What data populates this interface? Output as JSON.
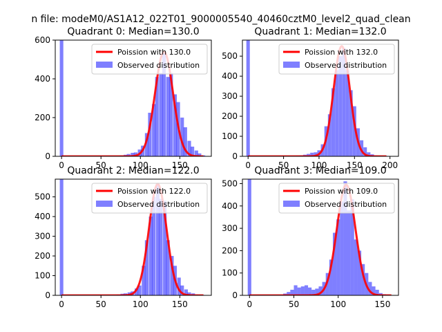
{
  "figure": {
    "suptitle": "n file: modeM0/AS1A12_022T01_9000005540_40460cztM0_level2_quad_clean"
  },
  "chart_data": [
    {
      "type": "bar",
      "title": "Quadrant 0: Median=130.0",
      "xlim": [
        -8,
        190
      ],
      "ylim": [
        0,
        600
      ],
      "xticks": [
        0,
        50,
        100,
        150
      ],
      "yticks": [
        0,
        200,
        400,
        600
      ],
      "bin_width": 4.5,
      "median": 130.0,
      "legend": {
        "position": "top-right",
        "entries": [
          "Poission with 130.0",
          "Observed distribution"
        ]
      },
      "hist": {
        "x": [
          0,
          72,
          76,
          81,
          85,
          90,
          94,
          99,
          103,
          108,
          112,
          117,
          121,
          126,
          130,
          135,
          139,
          144,
          148,
          153,
          157,
          162,
          166,
          171,
          175,
          180
        ],
        "y": [
          600,
          2,
          4,
          8,
          12,
          18,
          20,
          35,
          55,
          120,
          225,
          270,
          410,
          430,
          530,
          410,
          430,
          320,
          280,
          200,
          150,
          80,
          50,
          30,
          15,
          5
        ]
      },
      "poisson_mu": 130.0,
      "poisson_peak": 540,
      "poisson_xrange": [
        0,
        180
      ]
    },
    {
      "type": "bar",
      "title": "Quadrant 1: Median=132.0",
      "xlim": [
        -8,
        212
      ],
      "ylim": [
        0,
        580
      ],
      "xticks": [
        0,
        50,
        100,
        150,
        200
      ],
      "yticks": [
        0,
        100,
        200,
        300,
        400,
        500
      ],
      "bin_width": 4.9,
      "median": 132.0,
      "legend": {
        "position": "top-right",
        "entries": [
          "Poission with 132.0",
          "Observed distribution"
        ]
      },
      "hist": {
        "x": [
          0,
          65,
          70,
          75,
          80,
          85,
          90,
          95,
          100,
          105,
          110,
          115,
          120,
          125,
          130,
          135,
          140,
          145,
          150,
          155,
          160,
          165,
          170,
          175,
          180,
          185,
          190,
          195
        ],
        "y": [
          580,
          2,
          3,
          5,
          8,
          12,
          18,
          20,
          30,
          60,
          150,
          210,
          340,
          430,
          500,
          540,
          430,
          330,
          250,
          140,
          80,
          45,
          20,
          10,
          5,
          3,
          2,
          2
        ]
      },
      "poisson_mu": 132.0,
      "poisson_peak": 550,
      "poisson_xrange": [
        0,
        195
      ]
    },
    {
      "type": "bar",
      "title": "Quadrant 2: Median=122.0",
      "xlim": [
        -8,
        190
      ],
      "ylim": [
        0,
        590
      ],
      "xticks": [
        0,
        50,
        100,
        150
      ],
      "yticks": [
        0,
        100,
        200,
        300,
        400,
        500
      ],
      "bin_width": 4.5,
      "median": 122.0,
      "legend": {
        "position": "top-right",
        "entries": [
          "Poission with 122.0",
          "Observed distribution"
        ]
      },
      "hist": {
        "x": [
          0,
          68,
          72,
          77,
          81,
          86,
          90,
          95,
          99,
          104,
          108,
          113,
          117,
          122,
          126,
          131,
          135,
          140,
          144,
          149,
          153,
          158,
          162,
          167,
          171,
          176,
          180
        ],
        "y": [
          590,
          2,
          4,
          8,
          10,
          15,
          20,
          35,
          50,
          150,
          280,
          400,
          500,
          570,
          490,
          480,
          280,
          200,
          150,
          90,
          50,
          30,
          15,
          10,
          5,
          3,
          2
        ]
      },
      "poisson_mu": 122.0,
      "poisson_peak": 565,
      "poisson_xrange": [
        0,
        180
      ]
    },
    {
      "type": "bar",
      "title": "Quadrant 3: Median=109.0",
      "xlim": [
        -8,
        168
      ],
      "ylim": [
        0,
        520
      ],
      "xticks": [
        0,
        50,
        100,
        150
      ],
      "yticks": [
        0,
        100,
        200,
        300,
        400,
        500
      ],
      "bin_width": 4.0,
      "median": 109.0,
      "legend": {
        "position": "top-right",
        "entries": [
          "Poission with 109.0",
          "Observed distribution"
        ]
      },
      "hist": {
        "x": [
          0,
          36,
          40,
          44,
          48,
          52,
          56,
          60,
          64,
          68,
          72,
          76,
          80,
          84,
          88,
          92,
          96,
          100,
          104,
          108,
          112,
          116,
          120,
          124,
          128,
          132,
          136,
          140,
          144,
          148,
          152,
          156
        ],
        "y": [
          520,
          2,
          8,
          15,
          25,
          45,
          35,
          40,
          45,
          35,
          25,
          30,
          40,
          60,
          100,
          160,
          280,
          340,
          420,
          510,
          380,
          430,
          250,
          200,
          140,
          100,
          60,
          40,
          25,
          10,
          5,
          3
        ]
      },
      "poisson_mu": 109.0,
      "poisson_peak": 495,
      "poisson_xrange": [
        0,
        160
      ]
    }
  ]
}
